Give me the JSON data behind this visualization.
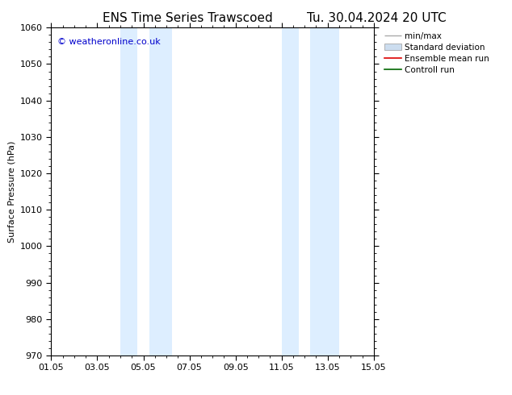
{
  "title_left": "ENS Time Series Trawscoed",
  "title_right": "Tu. 30.04.2024 20 UTC",
  "ylabel": "Surface Pressure (hPa)",
  "ylim": [
    970,
    1060
  ],
  "yticks": [
    970,
    980,
    990,
    1000,
    1010,
    1020,
    1030,
    1040,
    1050,
    1060
  ],
  "xlim_start": 0,
  "xlim_end": 14,
  "xtick_labels": [
    "01.05",
    "03.05",
    "05.05",
    "07.05",
    "09.05",
    "11.05",
    "13.05",
    "15.05"
  ],
  "xtick_positions": [
    0,
    2,
    4,
    6,
    8,
    10,
    12,
    14
  ],
  "shaded_bands": [
    {
      "x_start": 3.0,
      "x_end": 3.75
    },
    {
      "x_start": 4.25,
      "x_end": 5.25
    },
    {
      "x_start": 10.0,
      "x_end": 10.75
    },
    {
      "x_start": 11.25,
      "x_end": 12.5
    }
  ],
  "shaded_color": "#ddeeff",
  "background_color": "#ffffff",
  "plot_bg_color": "#ffffff",
  "watermark_text": "© weatheronline.co.uk",
  "watermark_color": "#0000cc",
  "legend_entries": [
    {
      "label": "min/max",
      "color": "#aaaaaa",
      "lw": 1.0
    },
    {
      "label": "Standard deviation",
      "color": "#ccddef",
      "lw": 6
    },
    {
      "label": "Ensemble mean run",
      "color": "#dd0000",
      "lw": 1.2
    },
    {
      "label": "Controll run",
      "color": "#006600",
      "lw": 1.2
    }
  ],
  "title_fontsize": 11,
  "tick_fontsize": 8,
  "label_fontsize": 8,
  "legend_fontsize": 7.5
}
